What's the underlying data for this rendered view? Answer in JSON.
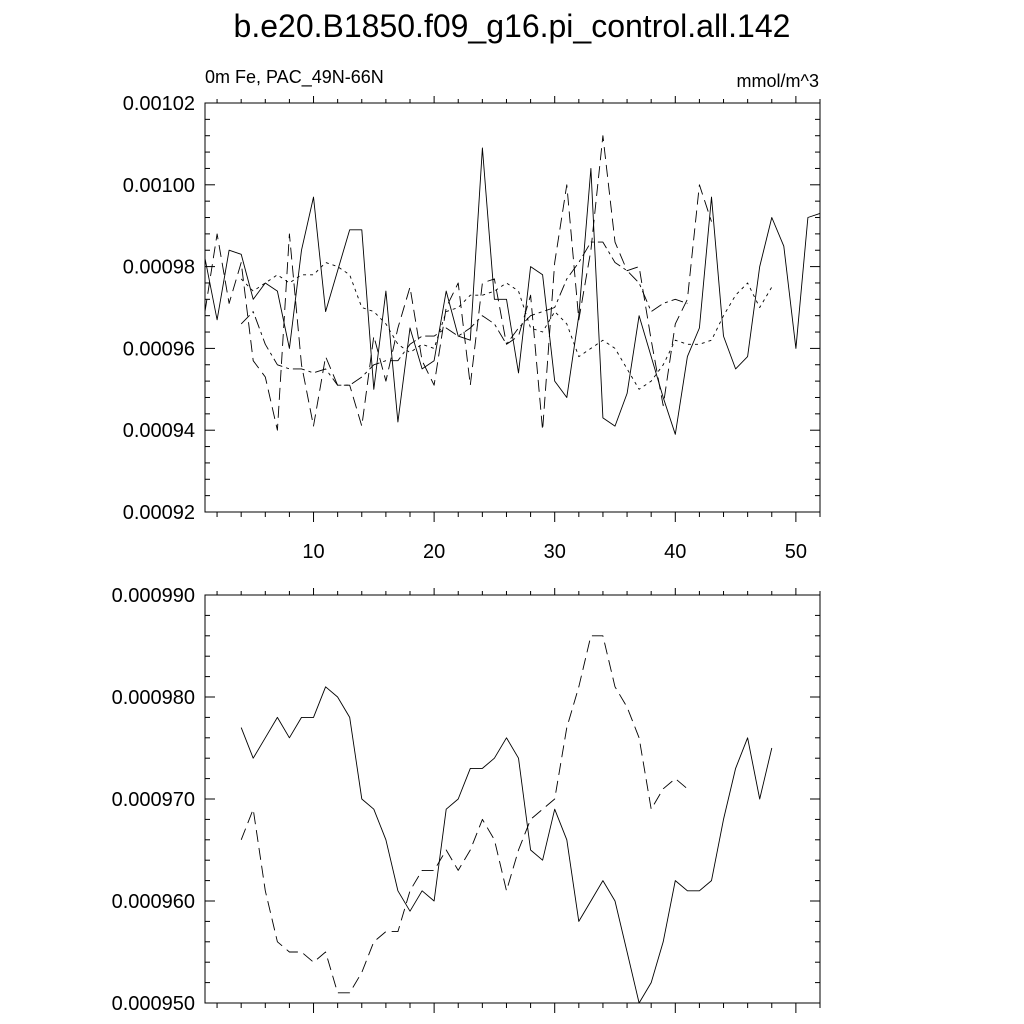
{
  "figure": {
    "title": "b.e20.B1850.f09_g16.pi_control.all.142",
    "subtitle_left": "0m Fe, PAC_49N-66N",
    "subtitle_right": "mmol/m^3"
  },
  "chart_data": [
    {
      "type": "line",
      "title": "",
      "xlabel": "",
      "ylabel": "",
      "xlim": [
        1,
        52
      ],
      "ylim": [
        0.00092,
        0.00102
      ],
      "xticks": [
        10,
        20,
        30,
        40,
        50
      ],
      "xtick_labels": [
        "10",
        "20",
        "30",
        "40",
        "50"
      ],
      "yticks": [
        0.00092,
        0.00094,
        0.00096,
        0.00098,
        0.001,
        0.00102
      ],
      "ytick_labels": [
        "0.00092",
        "0.00094",
        "0.00096",
        "0.00098",
        "0.00100",
        "0.00102"
      ],
      "grid": false,
      "series": [
        {
          "style": "solid",
          "x": [
            1,
            2,
            3,
            4,
            5,
            6,
            7,
            8,
            9,
            10,
            11,
            12,
            13,
            14,
            15,
            16,
            17,
            18,
            19,
            20,
            21,
            22,
            23,
            24,
            25,
            26,
            27,
            28,
            29,
            30,
            31,
            32,
            33,
            34,
            35,
            36,
            37,
            38,
            39,
            40,
            41,
            42,
            43,
            44,
            45,
            46,
            47,
            48,
            49,
            50,
            51,
            52
          ],
          "y": [
            0.000982,
            0.000967,
            0.000984,
            0.000983,
            0.000972,
            0.000976,
            0.000974,
            0.00096,
            0.000984,
            0.000997,
            0.000969,
            0.000979,
            0.000989,
            0.000989,
            0.00095,
            0.000974,
            0.000942,
            0.000965,
            0.000955,
            0.000957,
            0.000974,
            0.000963,
            0.000962,
            0.001009,
            0.000972,
            0.000972,
            0.000954,
            0.00098,
            0.000978,
            0.000952,
            0.000948,
            0.000968,
            0.001004,
            0.000943,
            0.000941,
            0.000949,
            0.000968,
            0.000958,
            0.000948,
            0.000939,
            0.000958,
            0.000965,
            0.000997,
            0.000963,
            0.000955,
            0.000958,
            0.00098,
            0.000992,
            0.000985,
            0.00096,
            0.000992,
            0.000993
          ]
        },
        {
          "style": "dashed",
          "x": [
            1,
            2,
            3,
            4,
            5,
            6,
            7,
            8,
            9,
            10,
            11,
            12,
            13,
            14,
            15,
            16,
            17,
            18,
            19,
            20,
            21,
            22,
            23,
            24,
            25,
            26,
            27,
            28,
            29,
            30,
            31,
            32,
            33,
            34,
            35,
            36,
            37,
            38,
            39,
            40,
            41,
            42,
            43
          ],
          "y": [
            0.000969,
            0.000988,
            0.000971,
            0.000981,
            0.000957,
            0.000953,
            0.00094,
            0.000988,
            0.000956,
            0.000941,
            0.000958,
            0.000951,
            0.000951,
            0.000941,
            0.000963,
            0.000952,
            0.000965,
            0.000975,
            0.000957,
            0.000951,
            0.00097,
            0.000976,
            0.000951,
            0.000976,
            0.000977,
            0.000961,
            0.000963,
            0.000973,
            0.00094,
            0.000981,
            0.001,
            0.000967,
            0.000984,
            0.001012,
            0.000986,
            0.000979,
            0.00098,
            0.000962,
            0.000946,
            0.000966,
            0.000972,
            0.001,
            0.000991
          ]
        },
        {
          "style": "dotted",
          "x": [
            4,
            5,
            6,
            7,
            8,
            9,
            10,
            11,
            12,
            13,
            14,
            15,
            16,
            17,
            18,
            19,
            20,
            21,
            22,
            23,
            24,
            25,
            26,
            27,
            28,
            29,
            30,
            31,
            32,
            33,
            34,
            35,
            36,
            37,
            38,
            39,
            40,
            41,
            42,
            43,
            44,
            45,
            46,
            47,
            48
          ],
          "y": [
            0.000977,
            0.000974,
            0.000976,
            0.000978,
            0.000976,
            0.000978,
            0.000978,
            0.000981,
            0.00098,
            0.000978,
            0.00097,
            0.000969,
            0.000966,
            0.000961,
            0.000959,
            0.000961,
            0.00096,
            0.000969,
            0.00097,
            0.000973,
            0.000973,
            0.000974,
            0.000976,
            0.000974,
            0.000965,
            0.000964,
            0.000969,
            0.000966,
            0.000958,
            0.00096,
            0.000962,
            0.00096,
            0.000955,
            0.00095,
            0.000952,
            0.000956,
            0.000962,
            0.000961,
            0.000961,
            0.000962,
            0.000968,
            0.000973,
            0.000976,
            0.00097,
            0.000975
          ]
        },
        {
          "style": "dashdot",
          "x": [
            4,
            5,
            6,
            7,
            8,
            9,
            10,
            11,
            12,
            13,
            14,
            15,
            16,
            17,
            18,
            19,
            20,
            21,
            22,
            23,
            24,
            25,
            26,
            27,
            28,
            29,
            30,
            31,
            32,
            33,
            34,
            35,
            36,
            37,
            38,
            39,
            40,
            41
          ],
          "y": [
            0.000966,
            0.000969,
            0.000961,
            0.000956,
            0.000955,
            0.000955,
            0.000954,
            0.000955,
            0.000951,
            0.000951,
            0.000953,
            0.000956,
            0.000957,
            0.000957,
            0.000961,
            0.000963,
            0.000963,
            0.000965,
            0.000963,
            0.000965,
            0.000968,
            0.000966,
            0.000961,
            0.000965,
            0.000968,
            0.000969,
            0.00097,
            0.000977,
            0.000981,
            0.000986,
            0.000986,
            0.000981,
            0.000979,
            0.000976,
            0.000969,
            0.000971,
            0.000972,
            0.000971
          ]
        }
      ]
    },
    {
      "type": "line",
      "title": "",
      "xlabel": "",
      "ylabel": "",
      "xlim": [
        1,
        52
      ],
      "ylim": [
        0.00095,
        0.00099
      ],
      "xticks": [
        10,
        20,
        30,
        40,
        50
      ],
      "xtick_labels": [],
      "yticks": [
        0.00095,
        0.00096,
        0.00097,
        0.00098,
        0.00099
      ],
      "ytick_labels": [
        "0.000950",
        "0.000960",
        "0.000970",
        "0.000980",
        "0.000990"
      ],
      "grid": false,
      "series": [
        {
          "style": "solid",
          "x": [
            4,
            5,
            6,
            7,
            8,
            9,
            10,
            11,
            12,
            13,
            14,
            15,
            16,
            17,
            18,
            19,
            20,
            21,
            22,
            23,
            24,
            25,
            26,
            27,
            28,
            29,
            30,
            31,
            32,
            33,
            34,
            35,
            36,
            37,
            38,
            39,
            40,
            41,
            42,
            43,
            44,
            45,
            46,
            47,
            48
          ],
          "y": [
            0.000977,
            0.000974,
            0.000976,
            0.000978,
            0.000976,
            0.000978,
            0.000978,
            0.000981,
            0.00098,
            0.000978,
            0.00097,
            0.000969,
            0.000966,
            0.000961,
            0.000959,
            0.000961,
            0.00096,
            0.000969,
            0.00097,
            0.000973,
            0.000973,
            0.000974,
            0.000976,
            0.000974,
            0.000965,
            0.000964,
            0.000969,
            0.000966,
            0.000958,
            0.00096,
            0.000962,
            0.00096,
            0.000955,
            0.00095,
            0.000952,
            0.000956,
            0.000962,
            0.000961,
            0.000961,
            0.000962,
            0.000968,
            0.000973,
            0.000976,
            0.00097,
            0.000975
          ]
        },
        {
          "style": "dashed",
          "x": [
            4,
            5,
            6,
            7,
            8,
            9,
            10,
            11,
            12,
            13,
            14,
            15,
            16,
            17,
            18,
            19,
            20,
            21,
            22,
            23,
            24,
            25,
            26,
            27,
            28,
            29,
            30,
            31,
            32,
            33,
            34,
            35,
            36,
            37,
            38,
            39,
            40,
            41
          ],
          "y": [
            0.000966,
            0.000969,
            0.000961,
            0.000956,
            0.000955,
            0.000955,
            0.000954,
            0.000955,
            0.000951,
            0.000951,
            0.000953,
            0.000956,
            0.000957,
            0.000957,
            0.000961,
            0.000963,
            0.000963,
            0.000965,
            0.000963,
            0.000965,
            0.000968,
            0.000966,
            0.000961,
            0.000965,
            0.000968,
            0.000969,
            0.00097,
            0.000977,
            0.000981,
            0.000986,
            0.000986,
            0.000981,
            0.000979,
            0.000976,
            0.000969,
            0.000971,
            0.000972,
            0.000971
          ]
        }
      ]
    }
  ]
}
